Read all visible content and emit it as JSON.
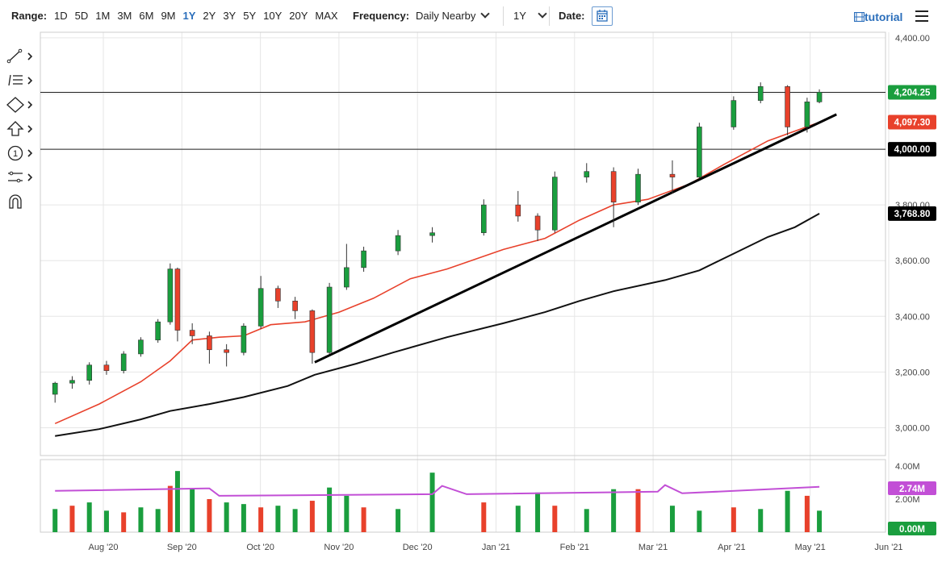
{
  "toolbar": {
    "range_label": "Range:",
    "ranges": [
      "1D",
      "5D",
      "1M",
      "3M",
      "6M",
      "9M",
      "1Y",
      "2Y",
      "3Y",
      "5Y",
      "10Y",
      "20Y",
      "MAX"
    ],
    "active_range": "1Y",
    "frequency_label": "Frequency:",
    "frequency_value": "Daily Nearby",
    "period_value": "1Y",
    "date_label": "Date:",
    "tutorial_label": "tutorial"
  },
  "drawing_tools": [
    "trend-line-icon",
    "fib-levels-icon",
    "shapes-icon",
    "arrow-up-icon",
    "number-badge-icon",
    "pattern-icon",
    "magnet-icon"
  ],
  "chart_data": {
    "type": "candlestick",
    "x_ticks": [
      "Aug '20",
      "Sep '20",
      "Oct '20",
      "Nov '20",
      "Dec '20",
      "Jan '21",
      "Feb '21",
      "Mar '21",
      "Apr '21",
      "May '21",
      "Jun '21"
    ],
    "y_ticks": [
      "4,400.00",
      "4,200.00",
      "4,000.00",
      "3,800.00",
      "3,600.00",
      "3,400.00",
      "3,200.00",
      "3,000.00"
    ],
    "ylim": [
      2900,
      4420
    ],
    "volume_ticks": [
      "4.00M",
      "2.00M"
    ],
    "volume_max": 4000000,
    "price_labels": [
      {
        "text": "4,204.25",
        "value": 4204.25,
        "color": "#1a9e3e"
      },
      {
        "text": "4,097.30",
        "value": 4097.3,
        "color": "#e8412b"
      },
      {
        "text": "4,000.00",
        "value": 4000,
        "color": "#000000"
      },
      {
        "text": "3,768.80",
        "value": 3768.8,
        "color": "#000000"
      }
    ],
    "volume_labels": [
      {
        "text": "2.74M",
        "color": "#c24fd6"
      },
      {
        "text": "0.00M",
        "color": "#1a9e3e"
      }
    ],
    "horizontal_lines": [
      4204.25,
      4000
    ],
    "ma_short_points": [
      [
        "2020-07-16",
        3015
      ],
      [
        "2020-08-03",
        3085
      ],
      [
        "2020-08-20",
        3165
      ],
      [
        "2020-09-01",
        3240
      ],
      [
        "2020-09-10",
        3315
      ],
      [
        "2020-09-21",
        3325
      ],
      [
        "2020-10-01",
        3330
      ],
      [
        "2020-10-12",
        3370
      ],
      [
        "2020-10-26",
        3380
      ],
      [
        "2020-11-09",
        3415
      ],
      [
        "2020-11-23",
        3465
      ],
      [
        "2020-12-08",
        3535
      ],
      [
        "2020-12-23",
        3570
      ],
      [
        "2021-01-15",
        3640
      ],
      [
        "2021-02-01",
        3680
      ],
      [
        "2021-02-15",
        3745
      ],
      [
        "2021-03-01",
        3800
      ],
      [
        "2021-03-15",
        3820
      ],
      [
        "2021-04-01",
        3875
      ],
      [
        "2021-04-15",
        3945
      ],
      [
        "2021-05-03",
        4030
      ],
      [
        "2021-05-14",
        4065
      ],
      [
        "2021-05-24",
        4097
      ]
    ],
    "ma_long_points": [
      [
        "2020-07-16",
        2970
      ],
      [
        "2020-08-03",
        2995
      ],
      [
        "2020-08-20",
        3030
      ],
      [
        "2020-09-01",
        3060
      ],
      [
        "2020-09-17",
        3085
      ],
      [
        "2020-10-01",
        3110
      ],
      [
        "2020-10-19",
        3150
      ],
      [
        "2020-10-30",
        3190
      ],
      [
        "2020-11-16",
        3230
      ],
      [
        "2020-12-01",
        3270
      ],
      [
        "2020-12-23",
        3325
      ],
      [
        "2021-01-15",
        3375
      ],
      [
        "2021-02-01",
        3415
      ],
      [
        "2021-02-15",
        3455
      ],
      [
        "2021-03-01",
        3490
      ],
      [
        "2021-03-22",
        3530
      ],
      [
        "2021-04-05",
        3565
      ],
      [
        "2021-04-19",
        3625
      ],
      [
        "2021-05-03",
        3685
      ],
      [
        "2021-05-14",
        3720
      ],
      [
        "2021-05-24",
        3769
      ]
    ],
    "trend_lines": [
      {
        "from": [
          "2020-10-30",
          3235
        ],
        "to": [
          "2021-05-31",
          4125
        ]
      }
    ],
    "volume_ma_points": [
      [
        "2020-07-16",
        2.5
      ],
      [
        "2020-09-17",
        2.65
      ],
      [
        "2020-09-21",
        2.2
      ],
      [
        "2020-12-17",
        2.3
      ],
      [
        "2020-12-21",
        2.8
      ],
      [
        "2020-12-31",
        2.3
      ],
      [
        "2021-03-19",
        2.45
      ],
      [
        "2021-03-22",
        2.85
      ],
      [
        "2021-03-29",
        2.35
      ],
      [
        "2021-05-24",
        2.74
      ]
    ],
    "candles": [
      [
        "2020-07-16",
        3120,
        3160,
        3090,
        3165
      ],
      [
        "2020-07-23",
        3160,
        3170,
        3140,
        3185
      ],
      [
        "2020-07-30",
        3170,
        3225,
        3155,
        3235
      ],
      [
        "2020-08-06",
        3225,
        3205,
        3190,
        3240
      ],
      [
        "2020-08-13",
        3205,
        3265,
        3195,
        3275
      ],
      [
        "2020-08-20",
        3265,
        3315,
        3255,
        3325
      ],
      [
        "2020-08-27",
        3315,
        3380,
        3305,
        3390
      ],
      [
        "2020-09-01",
        3380,
        3570,
        3370,
        3590
      ],
      [
        "2020-09-04",
        3570,
        3350,
        3310,
        3575
      ],
      [
        "2020-09-10",
        3350,
        3330,
        3300,
        3375
      ],
      [
        "2020-09-17",
        3330,
        3280,
        3230,
        3345
      ],
      [
        "2020-09-24",
        3280,
        3270,
        3220,
        3300
      ],
      [
        "2020-10-01",
        3270,
        3365,
        3260,
        3375
      ],
      [
        "2020-10-08",
        3365,
        3500,
        3355,
        3545
      ],
      [
        "2020-10-15",
        3500,
        3455,
        3430,
        3510
      ],
      [
        "2020-10-22",
        3455,
        3420,
        3390,
        3470
      ],
      [
        "2020-10-29",
        3420,
        3270,
        3230,
        3425
      ],
      [
        "2020-11-05",
        3270,
        3505,
        3265,
        3520
      ],
      [
        "2020-11-12",
        3505,
        3575,
        3495,
        3660
      ],
      [
        "2020-11-19",
        3575,
        3635,
        3560,
        3650
      ],
      [
        "2020-12-03",
        3635,
        3690,
        3620,
        3710
      ],
      [
        "2020-12-17",
        3690,
        3700,
        3665,
        3720
      ],
      [
        "2021-01-07",
        3700,
        3800,
        3690,
        3820
      ],
      [
        "2021-01-21",
        3800,
        3760,
        3740,
        3850
      ],
      [
        "2021-01-29",
        3760,
        3710,
        3670,
        3770
      ],
      [
        "2021-02-05",
        3710,
        3900,
        3700,
        3920
      ],
      [
        "2021-02-18",
        3900,
        3920,
        3880,
        3950
      ],
      [
        "2021-03-01",
        3920,
        3810,
        3720,
        3935
      ],
      [
        "2021-03-11",
        3810,
        3910,
        3800,
        3930
      ],
      [
        "2021-03-25",
        3910,
        3900,
        3840,
        3960
      ],
      [
        "2021-04-05",
        3900,
        4080,
        3895,
        4095
      ],
      [
        "2021-04-19",
        4080,
        4175,
        4070,
        4190
      ],
      [
        "2021-04-30",
        4175,
        4225,
        4165,
        4240
      ],
      [
        "2021-05-11",
        4225,
        4080,
        4050,
        4230
      ],
      [
        "2021-05-19",
        4080,
        4170,
        4060,
        4185
      ],
      [
        "2021-05-24",
        4170,
        4205,
        4165,
        4215
      ]
    ],
    "volume_bars": [
      [
        "2020-07-16",
        1.4
      ],
      [
        "2020-07-23",
        1.6
      ],
      [
        "2020-07-30",
        1.8
      ],
      [
        "2020-08-06",
        1.3
      ],
      [
        "2020-08-13",
        1.2
      ],
      [
        "2020-08-20",
        1.5
      ],
      [
        "2020-08-27",
        1.4
      ],
      [
        "2020-09-01",
        2.8
      ],
      [
        "2020-09-04",
        3.7
      ],
      [
        "2020-09-10",
        2.6
      ],
      [
        "2020-09-17",
        2.0
      ],
      [
        "2020-09-24",
        1.8
      ],
      [
        "2020-10-01",
        1.7
      ],
      [
        "2020-10-08",
        1.5
      ],
      [
        "2020-10-15",
        1.6
      ],
      [
        "2020-10-22",
        1.4
      ],
      [
        "2020-10-29",
        1.9
      ],
      [
        "2020-11-05",
        2.7
      ],
      [
        "2020-11-12",
        2.2
      ],
      [
        "2020-11-19",
        1.5
      ],
      [
        "2020-12-03",
        1.4
      ],
      [
        "2020-12-17",
        3.6
      ],
      [
        "2021-01-07",
        1.8
      ],
      [
        "2021-01-21",
        1.6
      ],
      [
        "2021-01-29",
        2.4
      ],
      [
        "2021-02-05",
        1.6
      ],
      [
        "2021-02-18",
        1.4
      ],
      [
        "2021-03-01",
        2.6
      ],
      [
        "2021-03-11",
        2.6
      ],
      [
        "2021-03-25",
        1.6
      ],
      [
        "2021-04-05",
        1.3
      ],
      [
        "2021-04-19",
        1.5
      ],
      [
        "2021-04-30",
        1.4
      ],
      [
        "2021-05-11",
        2.5
      ],
      [
        "2021-05-19",
        2.2
      ],
      [
        "2021-05-24",
        1.3
      ]
    ]
  }
}
